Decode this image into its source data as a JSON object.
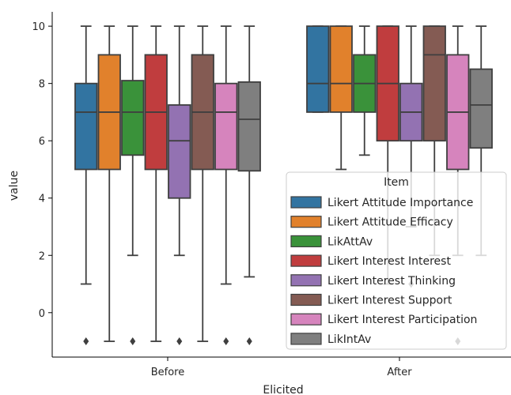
{
  "chart_data": {
    "type": "box",
    "title": "",
    "xlabel": "Elicited",
    "ylabel": "value",
    "categories": [
      "Before",
      "After"
    ],
    "ylim": [
      -1.55,
      10.5
    ],
    "yticks": [
      0,
      2,
      4,
      6,
      8,
      10
    ],
    "grid": false,
    "legend": {
      "title": "Item",
      "placement": "right"
    },
    "colors": [
      "#3274a1",
      "#e1812c",
      "#3a923a",
      "#c03d3e",
      "#9372b2",
      "#845b53",
      "#d684bd",
      "#7f7f7f"
    ],
    "series": [
      {
        "name": "Likert Attitude Importance",
        "boxes": [
          {
            "whislo": 1,
            "q1": 5,
            "med": 7,
            "q3": 8,
            "whishi": 10,
            "fliers": [
              -1
            ]
          },
          {
            "whislo": 7,
            "q1": 7,
            "med": 8,
            "q3": 10,
            "whishi": 10,
            "fliers": []
          }
        ]
      },
      {
        "name": "Likert Attitude Efficacy",
        "boxes": [
          {
            "whislo": -1,
            "q1": 5,
            "med": 7,
            "q3": 9,
            "whishi": 10,
            "fliers": []
          },
          {
            "whislo": 5,
            "q1": 7,
            "med": 8,
            "q3": 10,
            "whishi": 10,
            "fliers": []
          }
        ]
      },
      {
        "name": "LikAttAv",
        "boxes": [
          {
            "whislo": 2,
            "q1": 5.5,
            "med": 7,
            "q3": 8.1,
            "whishi": 10,
            "fliers": [
              -1
            ]
          },
          {
            "whislo": 5.5,
            "q1": 7,
            "med": 8,
            "q3": 9,
            "whishi": 10,
            "fliers": []
          }
        ]
      },
      {
        "name": "Likert Interest Interest",
        "boxes": [
          {
            "whislo": -1,
            "q1": 5,
            "med": 7,
            "q3": 9,
            "whishi": 10,
            "fliers": []
          },
          {
            "whislo": 1,
            "q1": 6,
            "med": 8,
            "q3": 10,
            "whishi": 10,
            "fliers": []
          }
        ]
      },
      {
        "name": "Likert Interest Thinking",
        "boxes": [
          {
            "whislo": 2,
            "q1": 4,
            "med": 6,
            "q3": 7.25,
            "whishi": 10,
            "fliers": [
              -1
            ]
          },
          {
            "whislo": 3,
            "q1": 6,
            "med": 7,
            "q3": 8,
            "whishi": 10,
            "fliers": [
              1
            ]
          }
        ]
      },
      {
        "name": "Likert Interest Support",
        "boxes": [
          {
            "whislo": -1,
            "q1": 5,
            "med": 7,
            "q3": 9,
            "whishi": 10,
            "fliers": []
          },
          {
            "whislo": 2,
            "q1": 6,
            "med": 9,
            "q3": 10,
            "whishi": 10,
            "fliers": []
          }
        ]
      },
      {
        "name": "Likert Interest Participation",
        "boxes": [
          {
            "whislo": 1,
            "q1": 5,
            "med": 7,
            "q3": 8,
            "whishi": 10,
            "fliers": [
              -1
            ]
          },
          {
            "whislo": 2,
            "q1": 5,
            "med": 7,
            "q3": 9,
            "whishi": 10,
            "fliers": [
              -1
            ]
          }
        ]
      },
      {
        "name": "LikIntAv",
        "boxes": [
          {
            "whislo": 1.25,
            "q1": 4.95,
            "med": 6.75,
            "q3": 8.05,
            "whishi": 10,
            "fliers": [
              -1
            ]
          },
          {
            "whislo": 2,
            "q1": 5.75,
            "med": 7.25,
            "q3": 8.5,
            "whishi": 10,
            "fliers": []
          }
        ]
      }
    ]
  }
}
